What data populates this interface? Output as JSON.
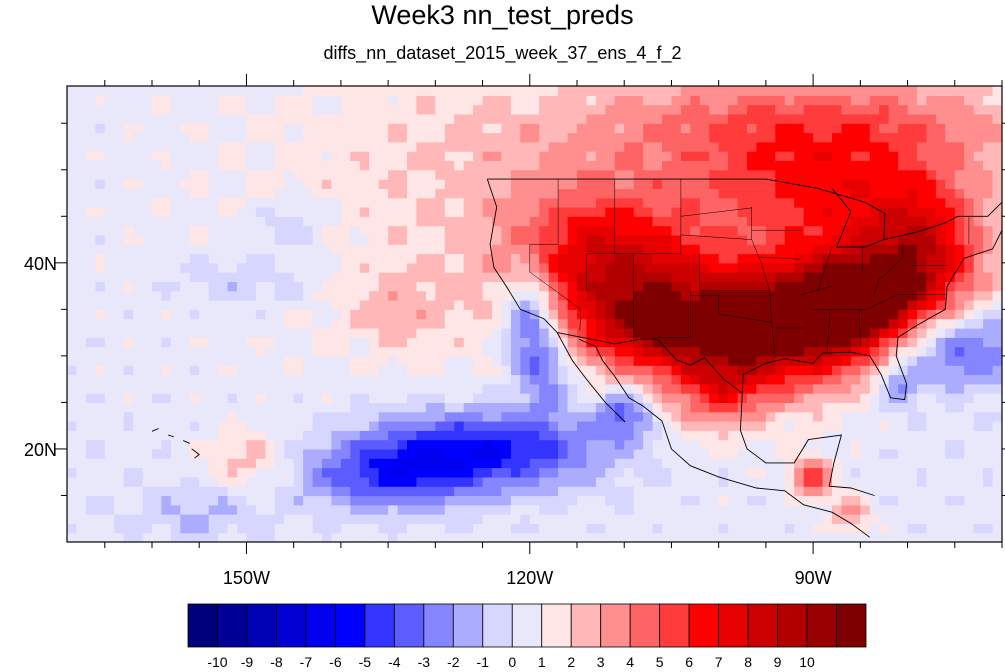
{
  "title": "Week3 nn_test_preds",
  "subtitle": "diffs_nn_dataset_2015_week_37_ens_4_f_2",
  "map": {
    "type": "filled-contour-map",
    "lon_range": [
      -169,
      -70
    ],
    "lat_range": [
      10,
      59
    ],
    "x_ticks": [
      {
        "lon": -150,
        "label": "150W"
      },
      {
        "lon": -120,
        "label": "120W"
      },
      {
        "lon": -90,
        "label": "90W"
      }
    ],
    "y_ticks": [
      {
        "lat": 40,
        "label": "40N"
      },
      {
        "lat": 20,
        "label": "20N"
      }
    ],
    "blobs": [
      {
        "lon": -122,
        "lat": 44,
        "v": 1.2,
        "sx": 22,
        "sy": 14
      },
      {
        "lon": -100,
        "lat": 52,
        "v": 1.5,
        "sx": 26,
        "sy": 6
      },
      {
        "lon": -88,
        "lat": 55,
        "v": 3.5,
        "sx": 14,
        "sy": 4
      },
      {
        "lon": -88,
        "lat": 47,
        "v": 4.0,
        "sx": 9,
        "sy": 4
      },
      {
        "lon": -112,
        "lat": 40,
        "v": 6.5,
        "sx": 7,
        "sy": 5
      },
      {
        "lon": -97,
        "lat": 33,
        "v": 9.5,
        "sx": 8,
        "sy": 5
      },
      {
        "lon": -86,
        "lat": 35,
        "v": 8.0,
        "sx": 6,
        "sy": 4
      },
      {
        "lon": -80,
        "lat": 39,
        "v": 5.5,
        "sx": 6,
        "sy": 4
      },
      {
        "lon": -108,
        "lat": 33,
        "v": 4.0,
        "sx": 5,
        "sy": 3
      },
      {
        "lon": -78,
        "lat": 44,
        "v": 3.0,
        "sx": 4,
        "sy": 4
      },
      {
        "lon": -100,
        "lat": 26,
        "v": 3.0,
        "sx": 3,
        "sy": 3
      },
      {
        "lon": -90,
        "lat": 17,
        "v": 5.0,
        "sx": 1.5,
        "sy": 1.5
      },
      {
        "lon": -86,
        "lat": 13,
        "v": 3.0,
        "sx": 1.5,
        "sy": 1.5
      },
      {
        "lon": -150,
        "lat": 19,
        "v": 2.0,
        "sx": 3,
        "sy": 2
      },
      {
        "lon": -134,
        "lat": 35,
        "v": 1.5,
        "sx": 4,
        "sy": 3
      },
      {
        "lon": -120,
        "lat": 34,
        "v": -5.0,
        "sx": 2,
        "sy": 4
      },
      {
        "lon": -118,
        "lat": 28,
        "v": -3.0,
        "sx": 2,
        "sy": 3
      },
      {
        "lon": -125,
        "lat": 20,
        "v": -6.0,
        "sx": 9,
        "sy": 3
      },
      {
        "lon": -135,
        "lat": 17,
        "v": -4.0,
        "sx": 6,
        "sy": 2.5
      },
      {
        "lon": -110,
        "lat": 24,
        "v": -4.0,
        "sx": 2,
        "sy": 2
      },
      {
        "lon": -75,
        "lat": 31,
        "v": -4.5,
        "sx": 5,
        "sy": 3
      },
      {
        "lon": -81,
        "lat": 27,
        "v": -3.0,
        "sx": 1.5,
        "sy": 2
      },
      {
        "lon": -150,
        "lat": 38,
        "v": -1.5,
        "sx": 5,
        "sy": 2
      },
      {
        "lon": -145,
        "lat": 44,
        "v": -1.5,
        "sx": 3,
        "sy": 2
      },
      {
        "lon": -155,
        "lat": 13,
        "v": -1.5,
        "sx": 5,
        "sy": 2
      }
    ]
  },
  "colorbar": {
    "colors": [
      "#00007a",
      "#000096",
      "#0000b4",
      "#0000d2",
      "#0000ee",
      "#0000ff",
      "#3434ff",
      "#5d5dff",
      "#8585ff",
      "#acacff",
      "#d6d6ff",
      "#e8e8fa",
      "#ffe6e6",
      "#ffb7b7",
      "#ff8f8f",
      "#ff6464",
      "#ff3b3b",
      "#ff0000",
      "#e60000",
      "#cc0000",
      "#b20000",
      "#990000",
      "#7f0000"
    ],
    "labels": [
      "-10",
      "-9",
      "-8",
      "-7",
      "-6",
      "-5",
      "-4",
      "-3",
      "-2",
      "-1",
      "0",
      "1",
      "2",
      "3",
      "4",
      "5",
      "6",
      "7",
      "8",
      "9",
      "10"
    ]
  }
}
